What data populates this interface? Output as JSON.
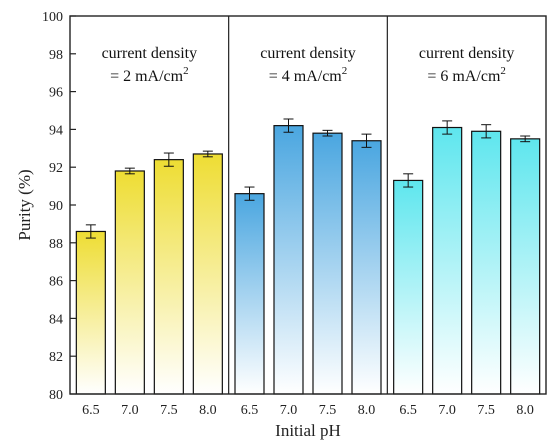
{
  "chart_data": {
    "type": "bar",
    "xlabel": "Initial pH",
    "ylabel": "Purity (%)",
    "ylim": [
      80,
      100
    ],
    "yticks": [
      80,
      82,
      84,
      86,
      88,
      90,
      92,
      94,
      96,
      98,
      100
    ],
    "grid": false,
    "groups": [
      {
        "label_line1": "current density",
        "label_line2_prefix": "= 2 mA/cm",
        "label_line2_sup": "2",
        "color": "#eedd33",
        "categories": [
          "6.5",
          "7.0",
          "7.5",
          "8.0"
        ],
        "values": [
          88.6,
          91.8,
          92.4,
          92.7
        ],
        "errors": [
          0.35,
          0.15,
          0.35,
          0.15
        ]
      },
      {
        "label_line1": "current density",
        "label_line2_prefix": "= 4 mA/cm",
        "label_line2_sup": "2",
        "color": "#4aa6e0",
        "categories": [
          "6.5",
          "7.0",
          "7.5",
          "8.0"
        ],
        "values": [
          90.6,
          94.2,
          93.8,
          93.4
        ],
        "errors": [
          0.35,
          0.35,
          0.15,
          0.35
        ]
      },
      {
        "label_line1": "current density",
        "label_line2_prefix": "= 6 mA/cm",
        "label_line2_sup": "2",
        "color": "#5ee6ee",
        "categories": [
          "6.5",
          "7.0",
          "7.5",
          "8.0"
        ],
        "values": [
          91.3,
          94.1,
          93.9,
          93.5
        ],
        "errors": [
          0.35,
          0.35,
          0.35,
          0.15
        ]
      }
    ]
  }
}
